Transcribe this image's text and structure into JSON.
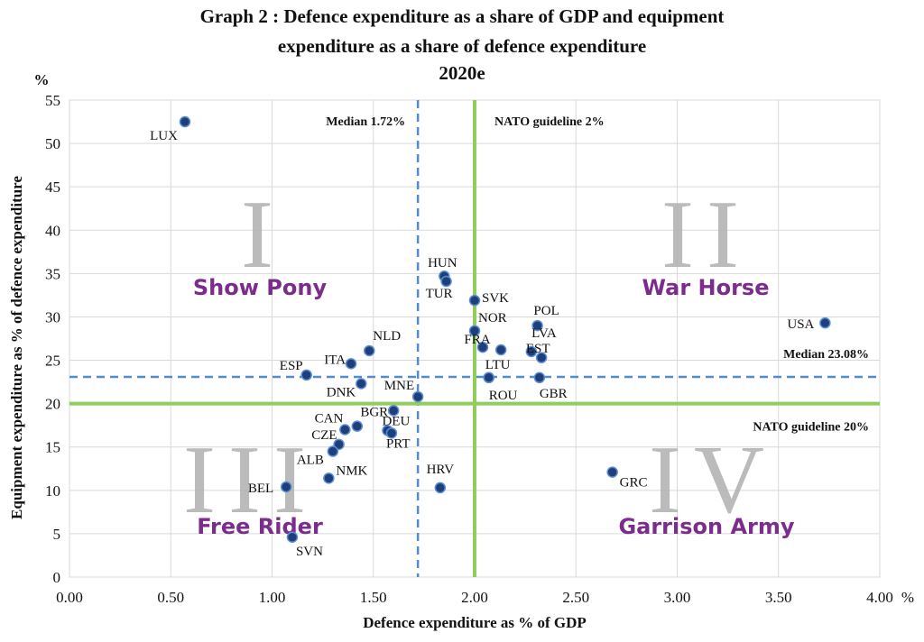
{
  "title": {
    "line1": "Graph 2 : Defence expenditure as a share of GDP and equipment",
    "line2": "expenditure as a share of defence expenditure",
    "line3": "2020e"
  },
  "chart_data": {
    "type": "scatter",
    "xlabel": "Defence expenditure as % of GDP",
    "ylabel": "Equipment expenditure as % of defence expenditure",
    "x_unit": "%",
    "y_unit": "%",
    "xlim": [
      0,
      4
    ],
    "ylim": [
      0,
      55
    ],
    "x_ticks": [
      "0.00",
      "0.50",
      "1.00",
      "1.50",
      "2.00",
      "2.50",
      "3.00",
      "3.50",
      "4.00"
    ],
    "y_ticks": [
      "0",
      "5",
      "10",
      "15",
      "20",
      "25",
      "30",
      "35",
      "40",
      "45",
      "50",
      "55"
    ],
    "grid": true,
    "points": [
      {
        "label": "LUX",
        "x": 0.57,
        "y": 52.5
      },
      {
        "label": "HUN",
        "x": 1.85,
        "y": 34.7
      },
      {
        "label": "TUR",
        "x": 1.86,
        "y": 34.1
      },
      {
        "label": "SVK",
        "x": 2.0,
        "y": 31.9
      },
      {
        "label": "POL",
        "x": 2.31,
        "y": 29.0
      },
      {
        "label": "USA",
        "x": 3.73,
        "y": 29.3
      },
      {
        "label": "NOR",
        "x": 2.0,
        "y": 28.4
      },
      {
        "label": "FRA",
        "x": 2.04,
        "y": 26.5
      },
      {
        "label": "LVA",
        "x": 2.13,
        "y": 26.2
      },
      {
        "label": "EST",
        "x": 2.28,
        "y": 26.0
      },
      {
        "label": "",
        "x": 2.33,
        "y": 25.3
      },
      {
        "label": "NLD",
        "x": 1.48,
        "y": 26.1
      },
      {
        "label": "ITA",
        "x": 1.39,
        "y": 24.6
      },
      {
        "label": "ESP",
        "x": 1.17,
        "y": 23.3
      },
      {
        "label": "LTU",
        "x": 2.07,
        "y": 23.0
      },
      {
        "label": "GBR",
        "x": 2.32,
        "y": 23.0
      },
      {
        "label": "DNK",
        "x": 1.44,
        "y": 22.3
      },
      {
        "label": "ROU",
        "x": 2.07,
        "y": 23.0
      },
      {
        "label": "MNE",
        "x": 1.72,
        "y": 20.8
      },
      {
        "label": "BGR",
        "x": 1.6,
        "y": 19.2
      },
      {
        "label": "CAN",
        "x": 1.36,
        "y": 17.0
      },
      {
        "label": "",
        "x": 1.42,
        "y": 17.4
      },
      {
        "label": "DEU",
        "x": 1.57,
        "y": 16.9
      },
      {
        "label": "PRT",
        "x": 1.59,
        "y": 16.6
      },
      {
        "label": "CZE",
        "x": 1.33,
        "y": 15.3
      },
      {
        "label": "ALB",
        "x": 1.3,
        "y": 14.5
      },
      {
        "label": "NMK",
        "x": 1.28,
        "y": 11.4
      },
      {
        "label": "BEL",
        "x": 1.07,
        "y": 10.4
      },
      {
        "label": "HRV",
        "x": 1.83,
        "y": 10.3
      },
      {
        "label": "GRC",
        "x": 2.68,
        "y": 12.1
      },
      {
        "label": "SVN",
        "x": 1.1,
        "y": 4.6
      }
    ],
    "reference_lines": {
      "median_x": {
        "value": 1.72,
        "label": "Median 1.72%"
      },
      "median_y": {
        "value": 23.08,
        "label": "Median 23.08%"
      },
      "nato_x": {
        "value": 2.0,
        "label": "NATO guideline 2%"
      },
      "nato_y": {
        "value": 20.0,
        "label": "NATO guideline 20%"
      }
    },
    "quadrants": [
      {
        "numeral": "I",
        "name": "Show Pony"
      },
      {
        "numeral": "II",
        "name": "War Horse"
      },
      {
        "numeral": "III",
        "name": "Free Rider"
      },
      {
        "numeral": "IV",
        "name": "Garrison Army"
      }
    ],
    "colors": {
      "point": "#1f3f7a",
      "point_stroke": "#5b8ed6",
      "median_line": "#4f8dd0",
      "nato_line": "#8fce5b",
      "quadrant_numeral": "#b4b4b4",
      "quadrant_name": "#7c2c8c",
      "grid": "#d9d9d9"
    }
  }
}
